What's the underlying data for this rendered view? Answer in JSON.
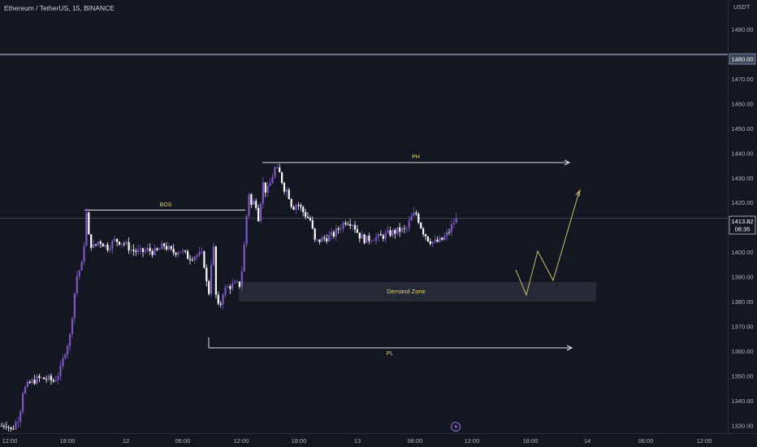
{
  "header": {
    "title": "Ethereum / TetherUS, 15, BINANCE",
    "currency": "USDT"
  },
  "price_axis": {
    "ticks": [
      "1490.00",
      "1470.00",
      "1460.00",
      "1450.00",
      "1440.00",
      "1430.00",
      "1420.00",
      "1400.00",
      "1390.00",
      "1380.00",
      "1370.00",
      "1360.00",
      "1350.00",
      "1340.00",
      "1330.00"
    ],
    "horizontal_line_label": "1480.00",
    "last_price": "1413.82",
    "countdown": "08:35"
  },
  "time_axis": {
    "ticks": [
      "12:00",
      "18:00",
      "12",
      "06:00",
      "12:00",
      "18:00",
      "13",
      "06:00",
      "12:00",
      "18:00",
      "14",
      "06:00",
      "12:00"
    ]
  },
  "annotations": {
    "bos": "BOS",
    "ph": "PH",
    "pl": "PL",
    "demand_zone": "Demand Zone"
  },
  "colors": {
    "background": "#131722",
    "candle_up": "#7e57c2",
    "candle_down": "#ffffff",
    "annotation_text": "#e6d36a",
    "projection": "#c8c05a",
    "demand_zone": "#2a2e39",
    "price_label": "#2962ff"
  },
  "chart_data": {
    "type": "candlestick",
    "symbol": "ETHUSDT",
    "timeframe": "15",
    "ylim": [
      1327,
      1502
    ],
    "horizontal_lines": [
      1480
    ],
    "last_price": 1413.82,
    "demand_zone": [
      1381,
      1388.5
    ],
    "ph_level": 1437,
    "pl_level": 1362.5,
    "bos_level": 1418,
    "path": [
      [
        0,
        1330
      ],
      [
        6,
        1331
      ],
      [
        12,
        1328
      ],
      [
        22,
        1334
      ],
      [
        26,
        1344
      ],
      [
        34,
        1347
      ],
      [
        44,
        1349
      ],
      [
        56,
        1349
      ],
      [
        64,
        1348
      ],
      [
        72,
        1352
      ],
      [
        78,
        1360
      ],
      [
        84,
        1366
      ],
      [
        88,
        1378
      ],
      [
        92,
        1390
      ],
      [
        96,
        1393
      ],
      [
        100,
        1396
      ],
      [
        104,
        1417
      ],
      [
        108,
        1404
      ],
      [
        114,
        1402
      ],
      [
        120,
        1405
      ],
      [
        130,
        1402
      ],
      [
        140,
        1405
      ],
      [
        150,
        1404
      ],
      [
        160,
        1401
      ],
      [
        170,
        1400
      ],
      [
        180,
        1401
      ],
      [
        190,
        1400
      ],
      [
        200,
        1403
      ],
      [
        210,
        1400
      ],
      [
        220,
        1401
      ],
      [
        230,
        1398
      ],
      [
        240,
        1399
      ],
      [
        248,
        1399
      ],
      [
        252,
        1388
      ],
      [
        256,
        1383
      ],
      [
        260,
        1408
      ],
      [
        264,
        1382
      ],
      [
        268,
        1376
      ],
      [
        272,
        1384
      ],
      [
        278,
        1386
      ],
      [
        286,
        1387
      ],
      [
        294,
        1387
      ],
      [
        298,
        1400
      ],
      [
        304,
        1425
      ],
      [
        308,
        1418
      ],
      [
        312,
        1422
      ],
      [
        316,
        1414
      ],
      [
        322,
        1428
      ],
      [
        326,
        1424
      ],
      [
        330,
        1427
      ],
      [
        336,
        1434
      ],
      [
        342,
        1432
      ],
      [
        348,
        1426
      ],
      [
        352,
        1425
      ],
      [
        358,
        1418
      ],
      [
        364,
        1420
      ],
      [
        372,
        1416
      ],
      [
        380,
        1413
      ],
      [
        386,
        1404
      ],
      [
        392,
        1405
      ],
      [
        400,
        1406
      ],
      [
        408,
        1407
      ],
      [
        416,
        1410
      ],
      [
        424,
        1413
      ],
      [
        432,
        1412
      ],
      [
        440,
        1407
      ],
      [
        448,
        1405
      ],
      [
        456,
        1406
      ],
      [
        464,
        1406
      ],
      [
        472,
        1407
      ],
      [
        480,
        1408
      ],
      [
        490,
        1409
      ],
      [
        498,
        1409
      ],
      [
        504,
        1414
      ],
      [
        510,
        1416
      ],
      [
        518,
        1409
      ],
      [
        526,
        1405
      ],
      [
        534,
        1404
      ],
      [
        542,
        1405
      ],
      [
        550,
        1408
      ],
      [
        556,
        1412
      ],
      [
        561,
        1413.82
      ]
    ]
  }
}
